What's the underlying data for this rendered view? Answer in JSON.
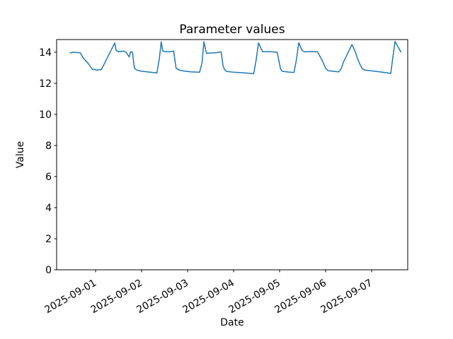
{
  "figure": {
    "background": "#ffffff",
    "title": "Parameter values",
    "xlabel": "Date",
    "ylabel": "Value"
  },
  "chart_data": {
    "type": "line",
    "title": "Parameter values",
    "xlabel": "Date",
    "ylabel": "Value",
    "grid": false,
    "legend": null,
    "line_color": "#1f77b4",
    "line_width": 1.5,
    "ylim": [
      0,
      14.82
    ],
    "y_ticks": [
      0,
      2,
      4,
      6,
      8,
      10,
      12,
      14
    ],
    "xlim": [
      "2025-08-31 03:40",
      "2025-09-07 18:50"
    ],
    "x_ticks": [
      "2025-09-01",
      "2025-09-02",
      "2025-09-03",
      "2025-09-04",
      "2025-09-05",
      "2025-09-06",
      "2025-09-07"
    ],
    "x_tick_rotation_deg": 30,
    "series": [
      {
        "name": "Parameter values",
        "color": "#1f77b4",
        "x": [
          "2025-08-31 10:45",
          "2025-08-31 12:00",
          "2025-08-31 16:00",
          "2025-08-31 17:45",
          "2025-08-31 20:00",
          "2025-08-31 22:15",
          "2025-09-01 00:30",
          "2025-09-01 03:00",
          "2025-09-01 05:30",
          "2025-09-01 07:45",
          "2025-09-01 10:00",
          "2025-09-01 10:45",
          "2025-09-01 12:15",
          "2025-09-01 14:45",
          "2025-09-01 16:00",
          "2025-09-01 17:30",
          "2025-09-01 18:15",
          "2025-09-01 19:15",
          "2025-09-01 20:15",
          "2025-09-01 21:30",
          "2025-09-02 00:00",
          "2025-09-02 03:45",
          "2025-09-02 08:00",
          "2025-09-02 09:15",
          "2025-09-02 10:15",
          "2025-09-02 11:00",
          "2025-09-02 11:45",
          "2025-09-02 14:45",
          "2025-09-02 16:45",
          "2025-09-02 17:30",
          "2025-09-02 18:00",
          "2025-09-02 19:45",
          "2025-09-02 22:15",
          "2025-09-03 01:45",
          "2025-09-03 06:15",
          "2025-09-03 07:30",
          "2025-09-03 08:30",
          "2025-09-03 09:30",
          "2025-09-03 10:00",
          "2025-09-03 11:00",
          "2025-09-03 14:45",
          "2025-09-03 17:30",
          "2025-09-03 18:30",
          "2025-09-03 19:15",
          "2025-09-03 20:15",
          "2025-09-04 00:00",
          "2025-09-04 05:30",
          "2025-09-04 10:30",
          "2025-09-04 11:45",
          "2025-09-04 13:00",
          "2025-09-04 14:15",
          "2025-09-04 15:15",
          "2025-09-04 18:30",
          "2025-09-04 22:45",
          "2025-09-05 00:30",
          "2025-09-05 01:15",
          "2025-09-05 04:30",
          "2025-09-05 07:30",
          "2025-09-05 08:45",
          "2025-09-05 10:00",
          "2025-09-05 11:45",
          "2025-09-05 13:00",
          "2025-09-05 16:30",
          "2025-09-05 19:45",
          "2025-09-05 21:00",
          "2025-09-05 22:30",
          "2025-09-06 00:00",
          "2025-09-06 01:15",
          "2025-09-06 03:45",
          "2025-09-06 06:45",
          "2025-09-06 08:00",
          "2025-09-06 09:15",
          "2025-09-06 11:00",
          "2025-09-06 13:45",
          "2025-09-06 15:30",
          "2025-09-06 16:30",
          "2025-09-06 17:45",
          "2025-09-06 19:00",
          "2025-09-06 20:15",
          "2025-09-07 01:45",
          "2025-09-07 06:45",
          "2025-09-07 10:00",
          "2025-09-07 11:00",
          "2025-09-07 12:15",
          "2025-09-07 13:30",
          "2025-09-07 15:15"
        ],
        "y": [
          13.95,
          14.0,
          13.97,
          13.6,
          13.3,
          12.92,
          12.86,
          12.88,
          13.5,
          14.05,
          14.6,
          14.11,
          14.03,
          14.08,
          13.99,
          13.7,
          14.03,
          13.99,
          12.97,
          12.85,
          12.78,
          12.73,
          12.67,
          13.6,
          14.68,
          14.1,
          14.05,
          14.03,
          14.08,
          13.4,
          12.97,
          12.85,
          12.79,
          12.74,
          12.72,
          13.3,
          14.68,
          14.11,
          13.92,
          13.95,
          13.97,
          14.03,
          13.12,
          12.9,
          12.77,
          12.72,
          12.68,
          12.62,
          13.5,
          14.6,
          14.26,
          14.03,
          14.05,
          14.0,
          12.93,
          12.78,
          12.73,
          12.7,
          13.5,
          14.62,
          14.11,
          14.03,
          14.05,
          14.03,
          13.75,
          13.4,
          12.97,
          12.82,
          12.78,
          12.74,
          12.9,
          13.35,
          13.8,
          14.5,
          14.03,
          13.65,
          13.27,
          12.97,
          12.86,
          12.78,
          12.7,
          12.64,
          13.6,
          14.7,
          14.41,
          14.03
        ]
      }
    ]
  }
}
